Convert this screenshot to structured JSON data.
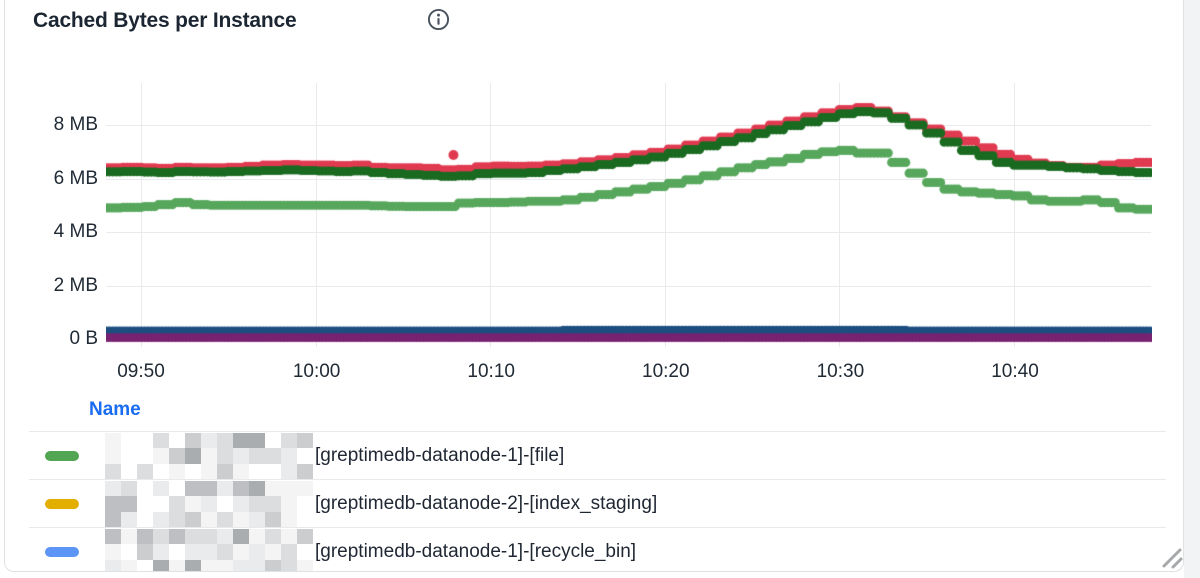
{
  "panel": {
    "title": "Cached Bytes per Instance"
  },
  "icons": {
    "info": "info-icon",
    "resize": "resize-handle-icon"
  },
  "colors": {
    "accent_blue": "#1a6cf0",
    "grid": "#e9eaec",
    "text": "#212b36",
    "legend_dash_green": "#52a552",
    "legend_dash_yellow": "#e2ae00",
    "legend_dash_blue": "#5c95f6"
  },
  "chart_data": {
    "type": "scatter",
    "title": "Cached Bytes per Instance",
    "ylabel": "",
    "xlabel": "",
    "grid": true,
    "y_axis": {
      "max_mb": 9.6,
      "ticks": [
        {
          "label": "8 MB",
          "value": 8
        },
        {
          "label": "6 MB",
          "value": 6
        },
        {
          "label": "4 MB",
          "value": 4
        },
        {
          "label": "2 MB",
          "value": 2
        },
        {
          "label": "0 B",
          "value": 0
        }
      ]
    },
    "x_axis": {
      "start_time": "09:48",
      "end_time": "10:48",
      "minutes_per_sample": 1,
      "ticks": [
        {
          "label": "09:50",
          "t": 2
        },
        {
          "label": "10:00",
          "t": 12
        },
        {
          "label": "10:10",
          "t": 22
        },
        {
          "label": "10:20",
          "t": 32
        },
        {
          "label": "10:30",
          "t": 42
        },
        {
          "label": "10:40",
          "t": 52
        }
      ]
    },
    "series": [
      {
        "name": "navy-blue",
        "color": "#1d4e80",
        "values": [
          0.3,
          0.3,
          0.3,
          0.3,
          0.3,
          0.3,
          0.3,
          0.3,
          0.3,
          0.3,
          0.3,
          0.3,
          0.3,
          0.3,
          0.3,
          0.3,
          0.3,
          0.3,
          0.3,
          0.3,
          0.3,
          0.3,
          0.3,
          0.3,
          0.3,
          0.3,
          0.33,
          0.33,
          0.33,
          0.33,
          0.33,
          0.33,
          0.33,
          0.33,
          0.33,
          0.33,
          0.33,
          0.33,
          0.33,
          0.33,
          0.33,
          0.33,
          0.33,
          0.33,
          0.33,
          0.33,
          0.3,
          0.3,
          0.3,
          0.3,
          0.3,
          0.3,
          0.3,
          0.3,
          0.3,
          0.3,
          0.3,
          0.3,
          0.3,
          0.3
        ]
      },
      {
        "name": "purple",
        "color": "#782272",
        "values": [
          0.05,
          0.05,
          0.05,
          0.05,
          0.05,
          0.05,
          0.05,
          0.05,
          0.05,
          0.05,
          0.05,
          0.05,
          0.05,
          0.05,
          0.05,
          0.05,
          0.05,
          0.05,
          0.05,
          0.05,
          0.05,
          0.05,
          0.05,
          0.05,
          0.05,
          0.05,
          0.05,
          0.05,
          0.05,
          0.05,
          0.05,
          0.05,
          0.05,
          0.05,
          0.05,
          0.05,
          0.05,
          0.05,
          0.05,
          0.05,
          0.05,
          0.05,
          0.05,
          0.05,
          0.05,
          0.05,
          0.05,
          0.05,
          0.05,
          0.05,
          0.05,
          0.05,
          0.05,
          0.05,
          0.05,
          0.05,
          0.05,
          0.05,
          0.05,
          0.05
        ]
      },
      {
        "name": "dark-red",
        "color": "#e03a51",
        "values": [
          6.4,
          6.42,
          6.4,
          6.38,
          6.42,
          6.4,
          6.4,
          6.42,
          6.45,
          6.5,
          6.52,
          6.5,
          6.5,
          6.48,
          6.5,
          6.42,
          6.4,
          6.4,
          6.38,
          6.32,
          6.34,
          6.44,
          6.46,
          6.45,
          6.46,
          6.5,
          6.55,
          6.62,
          6.7,
          6.78,
          6.88,
          6.98,
          7.1,
          7.25,
          7.4,
          7.55,
          7.7,
          7.85,
          8.0,
          8.15,
          8.3,
          8.45,
          8.58,
          8.65,
          8.52,
          8.3,
          8.08,
          7.85,
          7.62,
          7.4,
          7.15,
          6.9,
          6.72,
          6.58,
          6.48,
          6.42,
          6.42,
          6.5,
          6.56,
          6.6
        ]
      },
      {
        "name": "dark-green",
        "color": "#1a6b21",
        "values": [
          6.25,
          6.26,
          6.24,
          6.22,
          6.26,
          6.25,
          6.24,
          6.26,
          6.28,
          6.3,
          6.32,
          6.3,
          6.28,
          6.26,
          6.28,
          6.22,
          6.18,
          6.15,
          6.12,
          6.08,
          6.1,
          6.18,
          6.2,
          6.2,
          6.22,
          6.3,
          6.36,
          6.44,
          6.52,
          6.6,
          6.7,
          6.8,
          6.94,
          7.08,
          7.22,
          7.38,
          7.52,
          7.68,
          7.82,
          7.98,
          8.12,
          8.28,
          8.42,
          8.5,
          8.45,
          8.25,
          8.0,
          7.7,
          7.36,
          7.05,
          6.85,
          6.6,
          6.5,
          6.5,
          6.45,
          6.4,
          6.36,
          6.3,
          6.26,
          6.22
        ]
      },
      {
        "name": "light-green",
        "color": "#57a75c",
        "values": [
          4.9,
          4.92,
          4.95,
          5.02,
          5.1,
          5.02,
          5.0,
          5.0,
          5.0,
          5.0,
          5.0,
          5.0,
          5.0,
          5.0,
          5.0,
          4.98,
          4.96,
          4.95,
          4.95,
          4.95,
          5.08,
          5.1,
          5.1,
          5.12,
          5.15,
          5.15,
          5.2,
          5.3,
          5.4,
          5.5,
          5.6,
          5.7,
          5.82,
          5.95,
          6.1,
          6.25,
          6.4,
          6.52,
          6.62,
          6.75,
          6.9,
          7.0,
          7.05,
          6.95,
          6.95,
          6.6,
          6.2,
          5.85,
          5.6,
          5.5,
          5.45,
          5.4,
          5.35,
          5.2,
          5.15,
          5.15,
          5.2,
          5.1,
          4.9,
          4.85
        ]
      }
    ],
    "outlier": {
      "series": "dark-red",
      "t": 19.9,
      "value": 6.88
    },
    "legend_position": "bottom-table"
  },
  "legend": {
    "header": "Name",
    "rows": [
      {
        "dash_color": "#52a552",
        "redacted_prefix": true,
        "label": "[greptimedb-datanode-1]-[file]"
      },
      {
        "dash_color": "#e2ae00",
        "redacted_prefix": true,
        "label": "[greptimedb-datanode-2]-[index_staging]"
      },
      {
        "dash_color": "#5c95f6",
        "redacted_prefix": true,
        "label": "[greptimedb-datanode-1]-[recycle_bin]"
      }
    ]
  }
}
